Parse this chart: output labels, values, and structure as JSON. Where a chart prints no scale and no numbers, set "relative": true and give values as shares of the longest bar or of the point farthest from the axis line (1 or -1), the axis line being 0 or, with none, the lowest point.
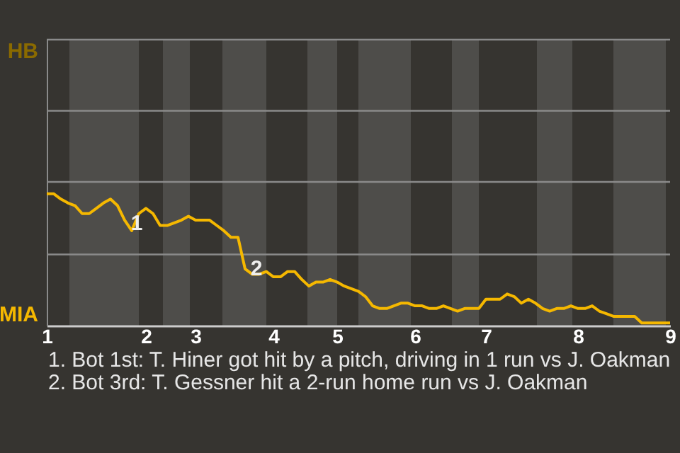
{
  "chart_data": {
    "type": "line",
    "relative": true,
    "categories": [
      "1",
      null,
      null,
      null,
      null,
      null,
      null,
      null,
      null,
      null,
      null,
      null,
      null,
      null,
      "2",
      null,
      null,
      null,
      null,
      null,
      null,
      "3",
      null,
      null,
      null,
      null,
      null,
      null,
      null,
      null,
      null,
      null,
      "4",
      null,
      null,
      null,
      null,
      null,
      null,
      null,
      null,
      "5",
      null,
      null,
      null,
      null,
      null,
      null,
      null,
      null,
      null,
      null,
      "6",
      null,
      null,
      null,
      null,
      null,
      null,
      null,
      null,
      null,
      "7",
      null,
      null,
      null,
      null,
      null,
      null,
      null,
      null,
      null,
      null,
      null,
      null,
      "8",
      null,
      null,
      null,
      null,
      null,
      null,
      null,
      null,
      null,
      null,
      null,
      null,
      "9"
    ],
    "series": [
      {
        "color": "#f5b800",
        "values": [
          1,
          1,
          0.96,
          0.93,
          0.91,
          0.85,
          0.85,
          0.89,
          0.93,
          0.96,
          0.91,
          0.8,
          0.72,
          0.85,
          0.89,
          0.85,
          0.76,
          0.76,
          0.78,
          0.8,
          0.83,
          0.8,
          0.8,
          0.8,
          0.76,
          0.72,
          0.67,
          0.67,
          0.43,
          0.39,
          0.39,
          0.41,
          0.37,
          0.37,
          0.41,
          0.41,
          0.35,
          0.3,
          0.33,
          0.33,
          0.35,
          0.33,
          0.3,
          0.28,
          0.26,
          0.22,
          0.15,
          0.13,
          0.13,
          0.15,
          0.17,
          0.17,
          0.15,
          0.15,
          0.13,
          0.13,
          0.15,
          0.13,
          0.11,
          0.13,
          0.13,
          0.13,
          0.2,
          0.2,
          0.2,
          0.24,
          0.22,
          0.17,
          0.2,
          0.17,
          0.13,
          0.11,
          0.13,
          0.13,
          0.15,
          0.13,
          0.13,
          0.15,
          0.11,
          0.09,
          0.07,
          0.07,
          0.07,
          0.07,
          0.02,
          0.02,
          0.02,
          0.02,
          0.02
        ]
      }
    ],
    "ref_lines": [
      {
        "axis": "y",
        "value": 0.54,
        "color": "#8a8a8a"
      },
      {
        "axis": "y",
        "value": 1.09,
        "color": "#8a8a8a"
      },
      {
        "axis": "y",
        "value": 1.63,
        "color": "#8a8a8a"
      },
      {
        "axis": "y",
        "value": 2.17,
        "color": "#8a8a8a"
      }
    ],
    "annotations": [
      "HB",
      "MIA",
      "1",
      "2",
      "1. Bot 1st: T. Hiner got hit by a pitch, driving in 1 run vs J. Oakman",
      "2. Bot 3rd: T. Gessner hit a 2-run home run vs J. Oakman"
    ]
  }
}
